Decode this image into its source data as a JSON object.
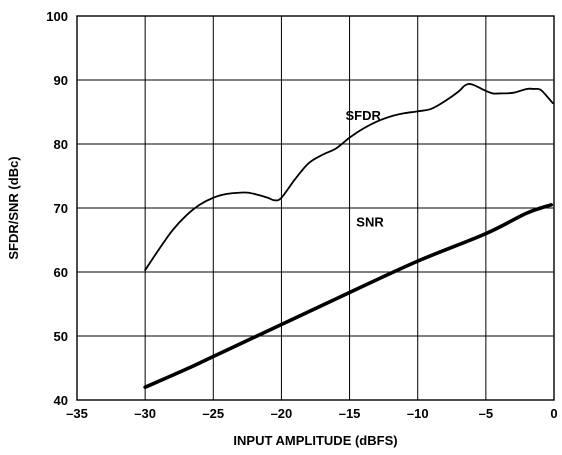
{
  "chart_data": {
    "type": "line",
    "title": "",
    "xlabel": "INPUT AMPLITUDE (dBFS)",
    "ylabel": "SFDR/SNR (dBc)",
    "xlim": [
      -35,
      0
    ],
    "ylim": [
      40,
      100
    ],
    "xticks": [
      -35,
      -30,
      -25,
      -20,
      -15,
      -10,
      -5,
      0
    ],
    "yticks": [
      40,
      50,
      60,
      70,
      80,
      90,
      100
    ],
    "xtick_labels": [
      "–35",
      "–30",
      "–25",
      "–20",
      "–15",
      "–10",
      "–5",
      "0"
    ],
    "ytick_labels": [
      "40",
      "50",
      "60",
      "70",
      "80",
      "90",
      "100"
    ],
    "grid": true,
    "legend": "none",
    "series": [
      {
        "name": "SFDR",
        "color": "#000000",
        "x": [
          -30,
          -29,
          -28,
          -27,
          -26,
          -25,
          -24,
          -23,
          -22.5,
          -22,
          -21,
          -20.5,
          -20,
          -19,
          -18,
          -17,
          -16,
          -15,
          -14,
          -13,
          -12,
          -11,
          -10,
          -9,
          -8,
          -7,
          -6.5,
          -6,
          -5,
          -4.5,
          -4,
          -3,
          -2,
          -1.5,
          -1,
          -0.5,
          -0.1
        ],
        "y": [
          60.3,
          63.5,
          66.5,
          68.8,
          70.5,
          71.6,
          72.2,
          72.4,
          72.4,
          72.2,
          71.6,
          71.2,
          71.6,
          74.5,
          77.0,
          78.3,
          79.3,
          81.0,
          82.4,
          83.5,
          84.3,
          84.8,
          85.1,
          85.5,
          86.7,
          88.2,
          89.2,
          89.3,
          88.3,
          87.9,
          87.9,
          88.0,
          88.6,
          88.6,
          88.5,
          87.4,
          86.4
        ]
      },
      {
        "name": "SNR",
        "color": "#000000",
        "x": [
          -30,
          -27,
          -25,
          -20,
          -15,
          -10,
          -5,
          -2,
          -0.2
        ],
        "y": [
          42.0,
          44.8,
          46.8,
          51.8,
          56.8,
          61.7,
          66.0,
          69.2,
          70.5
        ]
      }
    ],
    "annotations": [
      {
        "text": "SFDR",
        "x": -14,
        "y": 84.5
      },
      {
        "text": "SNR",
        "x": -13.5,
        "y": 67.9
      }
    ]
  }
}
